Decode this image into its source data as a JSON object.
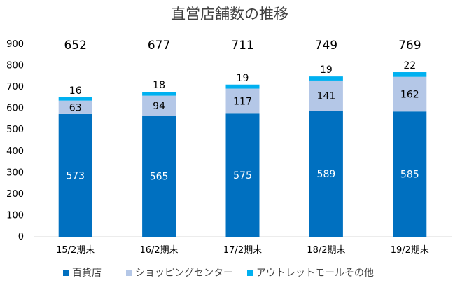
{
  "chart_data": {
    "type": "bar",
    "stacked": true,
    "title": "直営店舗数の推移",
    "categories": [
      "15/2期末",
      "16/2期末",
      "17/2期末",
      "18/2期末",
      "19/2期末"
    ],
    "series": [
      {
        "name": "百貨店",
        "values": [
          573,
          565,
          575,
          589,
          585
        ],
        "color": "#0070C0",
        "label_color": "#ffffff"
      },
      {
        "name": "ショッピングセンター",
        "values": [
          63,
          94,
          117,
          141,
          162
        ],
        "color": "#B4C7E7",
        "label_color": "#000000"
      },
      {
        "name": "アウトレットモールその他",
        "values": [
          16,
          18,
          19,
          19,
          22
        ],
        "color": "#00B0F0",
        "label_color": "#000000"
      }
    ],
    "totals": [
      652,
      677,
      711,
      749,
      769
    ],
    "ylim": [
      0,
      900
    ],
    "yticks": [
      0,
      100,
      200,
      300,
      400,
      500,
      600,
      700,
      800,
      900
    ],
    "grid": false,
    "legend": "bottom"
  }
}
